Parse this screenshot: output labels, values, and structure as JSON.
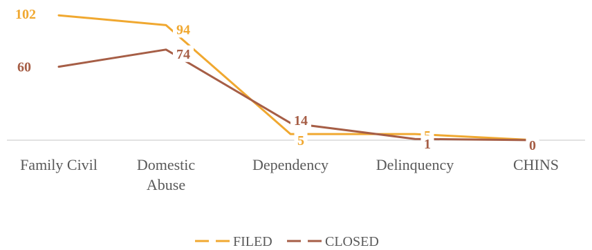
{
  "chart_data": {
    "type": "line",
    "categories": [
      "Family Civil",
      "Domestic Abuse",
      "Dependency",
      "Delinquency",
      "CHINS"
    ],
    "series": [
      {
        "name": "FILED",
        "values": [
          102,
          94,
          5,
          5,
          0
        ],
        "color": "#F0A830"
      },
      {
        "name": "CLOSED",
        "values": [
          60,
          74,
          14,
          1,
          0
        ],
        "color": "#A65E46"
      }
    ],
    "ylim": [
      0,
      110
    ],
    "grid": false,
    "legend": "bottom",
    "data_labels": true,
    "axis_color": "#D9D9D9",
    "text_color": "#595959"
  }
}
